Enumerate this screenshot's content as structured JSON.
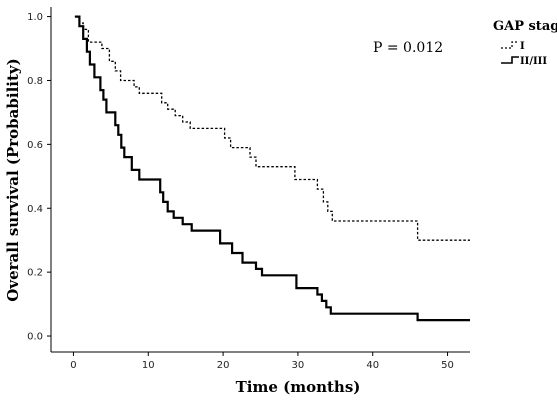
{
  "chart_data": {
    "type": "line",
    "xlabel": "Time (months)",
    "ylabel": "Overall survival (Probability)",
    "xlim": [
      -3,
      53
    ],
    "ylim": [
      -0.05,
      1.03
    ],
    "x_ticks": [
      "0",
      "10",
      "20",
      "30",
      "40",
      "50"
    ],
    "y_ticks": [
      "0.0",
      "0.2",
      "0.4",
      "0.6",
      "0.8",
      "1.0"
    ],
    "annotation": "P = 0.012",
    "legend": {
      "title": "GAP stage",
      "position": "top-right"
    },
    "series": [
      {
        "name": "I",
        "style": "dashed",
        "color": "#000000",
        "step_points": [
          [
            0.2,
            1.0
          ],
          [
            0.8,
            0.98
          ],
          [
            1.3,
            0.96
          ],
          [
            2.0,
            0.92
          ],
          [
            3.8,
            0.9
          ],
          [
            4.8,
            0.86
          ],
          [
            5.6,
            0.83
          ],
          [
            6.3,
            0.8
          ],
          [
            8.1,
            0.78
          ],
          [
            8.8,
            0.76
          ],
          [
            11.8,
            0.73
          ],
          [
            12.6,
            0.71
          ],
          [
            13.6,
            0.69
          ],
          [
            14.6,
            0.67
          ],
          [
            15.6,
            0.65
          ],
          [
            20.2,
            0.62
          ],
          [
            21.0,
            0.59
          ],
          [
            23.6,
            0.56
          ],
          [
            24.4,
            0.53
          ],
          [
            29.6,
            0.49
          ],
          [
            32.6,
            0.46
          ],
          [
            33.4,
            0.42
          ],
          [
            34.0,
            0.39
          ],
          [
            34.6,
            0.36
          ],
          [
            46.0,
            0.3
          ],
          [
            53.0,
            0.3
          ]
        ]
      },
      {
        "name": "II/III",
        "color": "#000000",
        "style": "solid",
        "step_points": [
          [
            0.2,
            1.0
          ],
          [
            0.8,
            0.97
          ],
          [
            1.3,
            0.93
          ],
          [
            1.8,
            0.89
          ],
          [
            2.2,
            0.85
          ],
          [
            2.8,
            0.81
          ],
          [
            3.6,
            0.77
          ],
          [
            4.0,
            0.74
          ],
          [
            4.4,
            0.7
          ],
          [
            5.6,
            0.66
          ],
          [
            6.0,
            0.63
          ],
          [
            6.4,
            0.59
          ],
          [
            6.8,
            0.56
          ],
          [
            7.8,
            0.52
          ],
          [
            8.8,
            0.49
          ],
          [
            11.6,
            0.45
          ],
          [
            12.0,
            0.42
          ],
          [
            12.6,
            0.39
          ],
          [
            13.4,
            0.37
          ],
          [
            14.6,
            0.35
          ],
          [
            15.8,
            0.33
          ],
          [
            19.6,
            0.29
          ],
          [
            21.2,
            0.26
          ],
          [
            22.6,
            0.23
          ],
          [
            24.4,
            0.21
          ],
          [
            25.2,
            0.19
          ],
          [
            29.8,
            0.15
          ],
          [
            32.6,
            0.13
          ],
          [
            33.2,
            0.11
          ],
          [
            33.8,
            0.09
          ],
          [
            34.4,
            0.07
          ],
          [
            46.0,
            0.05
          ],
          [
            53.0,
            0.05
          ]
        ]
      }
    ]
  }
}
